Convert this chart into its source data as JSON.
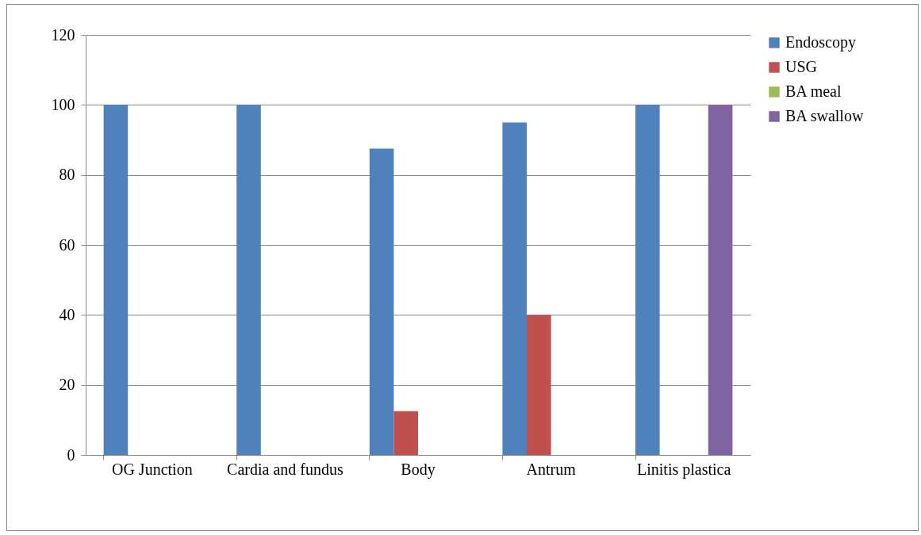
{
  "chart_data": {
    "type": "bar",
    "categories": [
      "OG Junction",
      "Cardia and fundus",
      "Body",
      "Antrum",
      "Linitis plastica"
    ],
    "series": [
      {
        "name": "Endoscopy",
        "color": "#4f81bd",
        "values": [
          100,
          100,
          87.5,
          95,
          100
        ]
      },
      {
        "name": "USG",
        "color": "#c0504d",
        "values": [
          0,
          0,
          12.5,
          40,
          0
        ]
      },
      {
        "name": "BA meal",
        "color": "#9bbb59",
        "values": [
          0,
          0,
          0,
          0,
          0
        ]
      },
      {
        "name": "BA swallow",
        "color": "#8064a2",
        "values": [
          0,
          0,
          0,
          0,
          100
        ]
      }
    ],
    "ylim": [
      0,
      120
    ],
    "yticks": [
      0,
      20,
      40,
      60,
      80,
      100,
      120
    ],
    "grid": "y",
    "legend": "right"
  }
}
